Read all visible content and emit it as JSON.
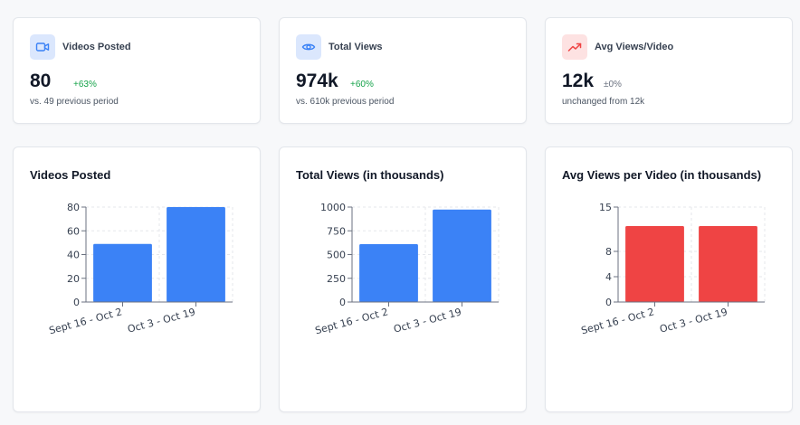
{
  "stats": [
    {
      "label": "Videos Posted",
      "value": "80",
      "change": "+63%",
      "change_type": "up",
      "sub": "vs. 49 previous period",
      "icon": "video-icon",
      "icon_color": "#3b82f6"
    },
    {
      "label": "Total Views",
      "value": "974k",
      "change": "+60%",
      "change_type": "up",
      "sub": "vs. 610k previous period",
      "icon": "eye-icon",
      "icon_color": "#3b82f6"
    },
    {
      "label": "Avg Views/Video",
      "value": "12k",
      "change": "±0%",
      "change_type": "flat",
      "sub": "unchanged from 12k",
      "icon": "trend-up-icon",
      "icon_color": "#ef4444"
    }
  ],
  "colors": {
    "blue": "#3b82f6",
    "red": "#ef4444",
    "green": "#16a34a"
  },
  "chart_data": [
    {
      "type": "bar",
      "title": "Videos Posted",
      "categories": [
        "Sept 16 - Oct 2",
        "Oct 3 - Oct 19"
      ],
      "values": [
        49,
        80
      ],
      "ylim": [
        0,
        80
      ],
      "yticks": [
        0,
        20,
        40,
        60,
        80
      ],
      "color": "#3b82f6",
      "grid": true
    },
    {
      "type": "bar",
      "title": "Total Views (in thousands)",
      "categories": [
        "Sept 16 - Oct 2",
        "Oct 3 - Oct 19"
      ],
      "values": [
        610,
        974
      ],
      "ylim": [
        0,
        1000
      ],
      "yticks": [
        0,
        250,
        500,
        750,
        1000
      ],
      "color": "#3b82f6",
      "grid": true
    },
    {
      "type": "bar",
      "title": "Avg Views per Video (in thousands)",
      "categories": [
        "Sept 16 - Oct 2",
        "Oct 3 - Oct 19"
      ],
      "values": [
        12,
        12
      ],
      "ylim": [
        0,
        15
      ],
      "yticks": [
        0,
        4,
        8,
        15
      ],
      "color": "#ef4444",
      "grid": true
    }
  ]
}
